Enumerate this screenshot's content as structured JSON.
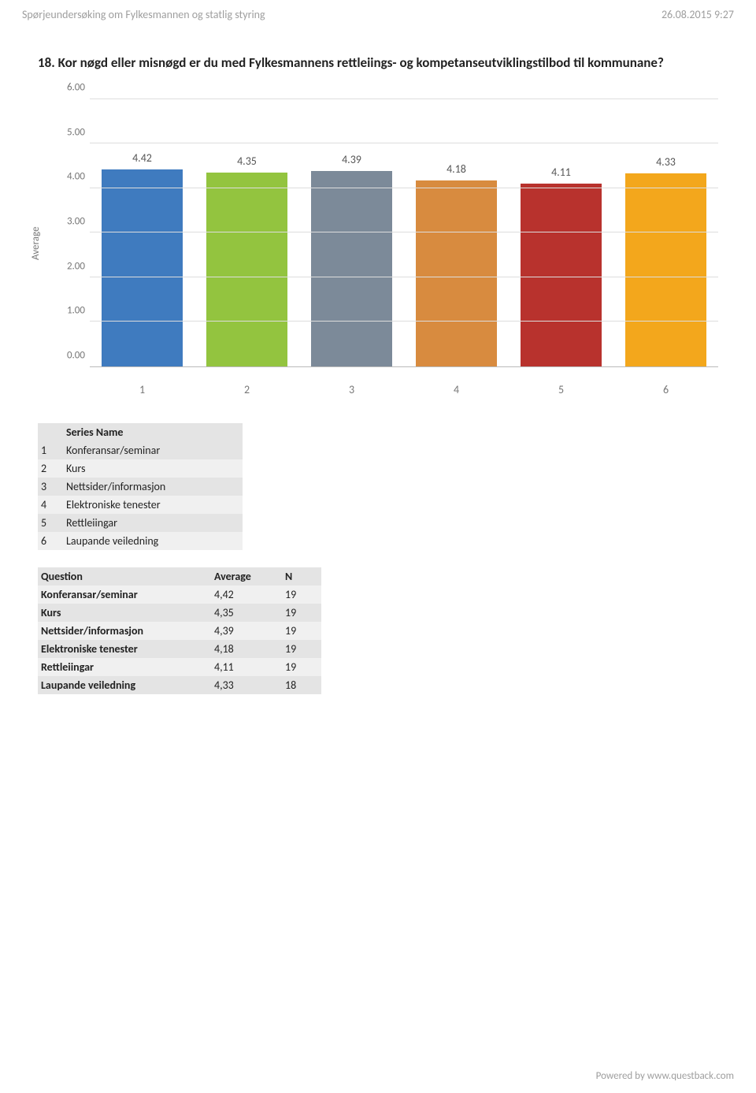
{
  "page": {
    "header_left": "Spørjeundersøking om Fylkesmannen og statlig styring",
    "header_right": "26.08.2015 9:27",
    "title": "18. Kor nøgd eller misnøgd er du med Fylkesmannens rettleiings- og kompetanseutviklingstilbod til kommunane?",
    "footer": "Powered by www.questback.com"
  },
  "chart": {
    "type": "bar",
    "ylabel": "Average",
    "ylim": [
      0,
      6
    ],
    "ytick_step": 1,
    "yticks": [
      "0.00",
      "1.00",
      "2.00",
      "3.00",
      "4.00",
      "5.00",
      "6.00"
    ],
    "categories": [
      "1",
      "2",
      "3",
      "4",
      "5",
      "6"
    ],
    "values": [
      4.42,
      4.35,
      4.39,
      4.18,
      4.11,
      4.33
    ],
    "value_labels": [
      "4.42",
      "4.35",
      "4.39",
      "4.18",
      "4.11",
      "4.33"
    ],
    "bar_colors": [
      "#3f7bbf",
      "#93c43f",
      "#7c8a99",
      "#d88b3f",
      "#b8322d",
      "#f3a71c"
    ],
    "grid_color": "#dddddd",
    "axis_color": "#bbbbbb",
    "label_color": "#555555",
    "tick_color": "#777777",
    "background_color": "#ffffff",
    "bar_width_pct": 78,
    "label_fontsize": 14,
    "tick_fontsize": 13
  },
  "series_table": {
    "header_index": "",
    "header_name": "Series Name",
    "rows": [
      {
        "i": "1",
        "name": "Konferansar/seminar"
      },
      {
        "i": "2",
        "name": "Kurs"
      },
      {
        "i": "3",
        "name": "Nettsider/informasjon"
      },
      {
        "i": "4",
        "name": "Elektroniske tenester"
      },
      {
        "i": "5",
        "name": "Rettleiingar"
      },
      {
        "i": "6",
        "name": "Laupande veiledning"
      }
    ]
  },
  "stats_table": {
    "col_question": "Question",
    "col_average": "Average",
    "col_n": "N",
    "rows": [
      {
        "q": "Konferansar/seminar",
        "avg": "4,42",
        "n": "19"
      },
      {
        "q": "Kurs",
        "avg": "4,35",
        "n": "19"
      },
      {
        "q": "Nettsider/informasjon",
        "avg": "4,39",
        "n": "19"
      },
      {
        "q": "Elektroniske tenester",
        "avg": "4,18",
        "n": "19"
      },
      {
        "q": "Rettleiingar",
        "avg": "4,11",
        "n": "19"
      },
      {
        "q": "Laupande veiledning",
        "avg": "4,33",
        "n": "18"
      }
    ]
  }
}
